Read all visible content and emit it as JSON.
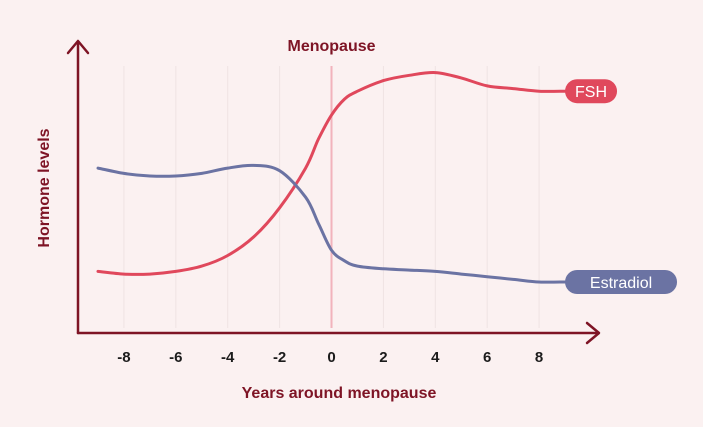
{
  "chart_data": {
    "type": "line",
    "title": "",
    "annotation": "Menopause",
    "xlabel": "Years around menopause",
    "ylabel": "Hormone levels",
    "xlim": [
      -9,
      9.5
    ],
    "ylim": [
      0,
      100
    ],
    "x_ticks": [
      -8,
      -6,
      -4,
      -2,
      0,
      2,
      4,
      6,
      8
    ],
    "x_tick_labels": [
      "-8",
      "-6",
      "-4",
      "-2",
      "0",
      "2",
      "4",
      "6",
      "8"
    ],
    "annotation_x": 0,
    "grid": "vertical",
    "series": [
      {
        "name": "FSH",
        "color": "#e0485c",
        "x": [
          -9,
          -8,
          -7,
          -6,
          -5,
          -4,
          -3,
          -2,
          -1,
          -0.5,
          0,
          0.5,
          1,
          2,
          3,
          4,
          5,
          6,
          7,
          8,
          9
        ],
        "y": [
          24,
          23,
          23,
          24,
          26,
          30,
          37,
          48,
          63,
          74,
          83,
          89,
          92,
          96,
          98,
          99,
          97,
          94,
          93,
          92,
          92
        ]
      },
      {
        "name": "Estradiol",
        "color": "#6b73a3",
        "x": [
          -9,
          -8,
          -7,
          -6,
          -5,
          -4,
          -3,
          -2,
          -1,
          -0.5,
          0,
          0.5,
          1,
          2,
          3,
          4,
          5,
          6,
          7,
          8,
          9
        ],
        "y": [
          63,
          61,
          60,
          60,
          61,
          63,
          64,
          62,
          52,
          42,
          32,
          28,
          26,
          25,
          24.5,
          24,
          23,
          22,
          21,
          20,
          20
        ]
      }
    ]
  }
}
